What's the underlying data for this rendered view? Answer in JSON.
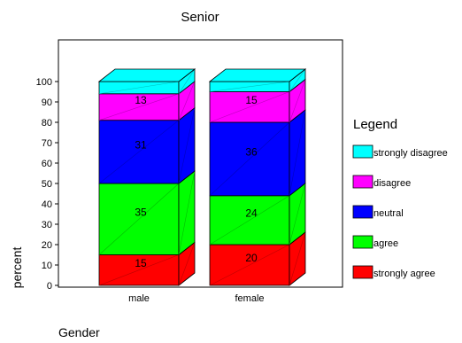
{
  "chart_data": {
    "type": "bar",
    "stacked": true,
    "style": "3d",
    "title": "Senior",
    "xlabel": "Gender",
    "ylabel": "percent",
    "categories": [
      "male",
      "female"
    ],
    "ylim": [
      0,
      100
    ],
    "yticks": [
      0,
      10,
      20,
      30,
      40,
      50,
      60,
      70,
      80,
      90,
      100
    ],
    "legend_title": "Legend",
    "legend_position": "right",
    "series": [
      {
        "name": "strongly agree",
        "color": "#ff0000",
        "values": [
          15,
          20
        ]
      },
      {
        "name": "agree",
        "color": "#00ff00",
        "values": [
          35,
          24
        ]
      },
      {
        "name": "neutral",
        "color": "#0000ff",
        "values": [
          31,
          36
        ]
      },
      {
        "name": "disagree",
        "color": "#ff00ff",
        "values": [
          13,
          15
        ]
      },
      {
        "name": "strongly disagree",
        "color": "#00ffff",
        "values": [
          6,
          5
        ]
      }
    ],
    "data_labels": [
      [
        "15",
        "20"
      ],
      [
        "35",
        "24"
      ],
      [
        "31",
        "36"
      ],
      [
        "13",
        "15"
      ],
      [
        "",
        ""
      ]
    ]
  }
}
